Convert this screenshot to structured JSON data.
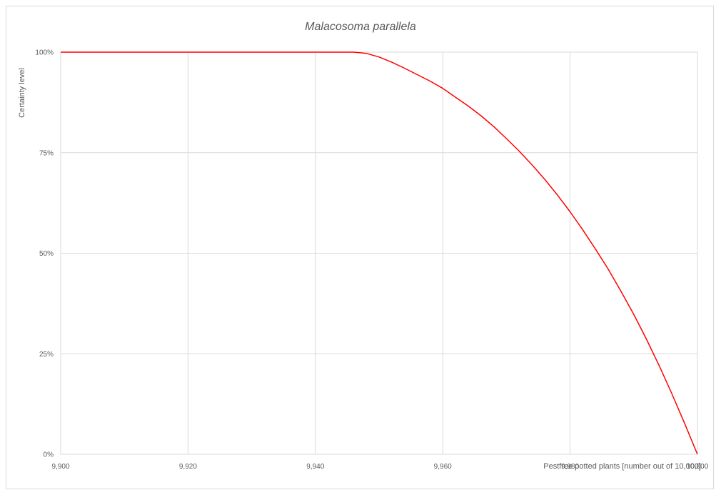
{
  "chart_data": {
    "type": "line",
    "title": "Malacosoma parallela",
    "xlabel": "Pestfree potted plants [number out of 10,000]",
    "ylabel": "Certainty level",
    "xlim": [
      9900,
      10000
    ],
    "ylim": [
      0,
      1
    ],
    "x_ticks": [
      9900,
      9920,
      9940,
      9960,
      9980,
      10000
    ],
    "x_tick_labels": [
      "9,900",
      "9,920",
      "9,940",
      "9,960",
      "9,980",
      "10,000"
    ],
    "y_ticks": [
      0,
      0.25,
      0.5,
      0.75,
      1.0
    ],
    "y_tick_labels": [
      "0%",
      "25%",
      "50%",
      "75%",
      "100%"
    ],
    "grid": true,
    "series": [
      {
        "color": "#ff0000",
        "x": [
          9900,
          9920,
          9940,
          9946,
          9948,
          9950,
          9952,
          9954,
          9956,
          9958,
          9960,
          9962,
          9964,
          9966,
          9968,
          9970,
          9972,
          9974,
          9976,
          9978,
          9980,
          9982,
          9984,
          9986,
          9988,
          9990,
          9992,
          9994,
          9996,
          9998,
          10000
        ],
        "y": [
          1.0,
          1.0,
          1.0,
          1.0,
          0.997,
          0.988,
          0.975,
          0.96,
          0.944,
          0.928,
          0.91,
          0.888,
          0.866,
          0.842,
          0.815,
          0.785,
          0.754,
          0.72,
          0.684,
          0.645,
          0.603,
          0.558,
          0.51,
          0.46,
          0.405,
          0.348,
          0.286,
          0.22,
          0.15,
          0.076,
          0.0
        ]
      }
    ]
  }
}
